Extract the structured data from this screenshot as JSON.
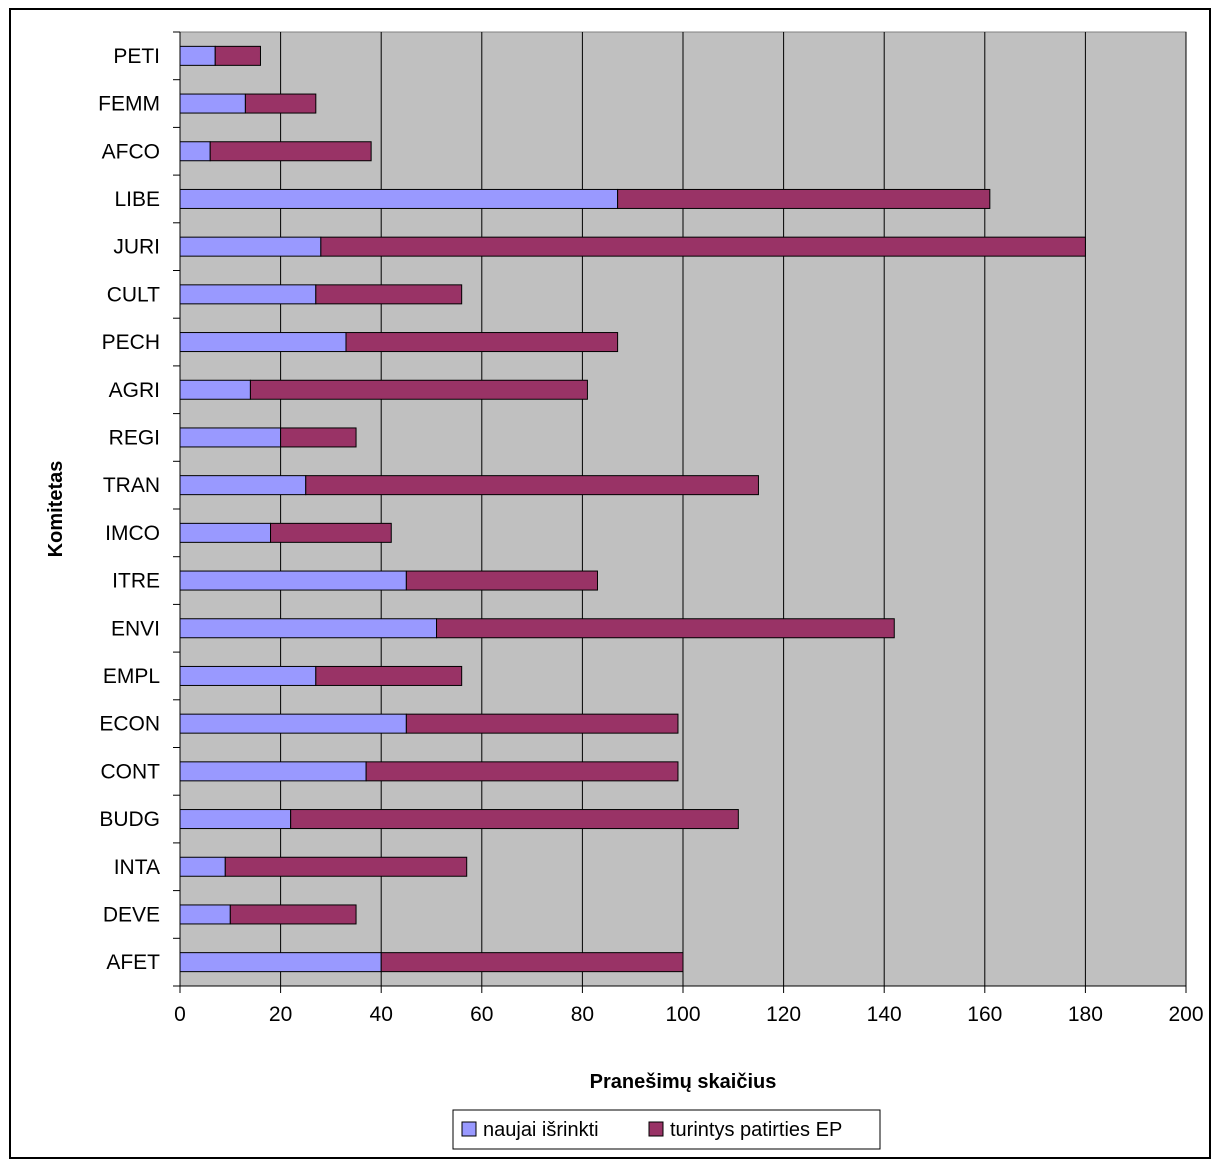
{
  "chart_data": {
    "type": "bar",
    "orientation": "horizontal",
    "stacked": true,
    "categories": [
      "AFET",
      "DEVE",
      "INTA",
      "BUDG",
      "CONT",
      "ECON",
      "EMPL",
      "ENVI",
      "ITRE",
      "IMCO",
      "TRAN",
      "REGI",
      "AGRI",
      "PECH",
      "CULT",
      "JURI",
      "LIBE",
      "AFCO",
      "FEMM",
      "PETI"
    ],
    "series": [
      {
        "name": "naujai išrinkti",
        "color": "#9999ff",
        "values": [
          40,
          10,
          9,
          22,
          37,
          45,
          27,
          51,
          45,
          18,
          25,
          20,
          14,
          33,
          27,
          28,
          87,
          6,
          13,
          7
        ]
      },
      {
        "name": "turintys patirties EP",
        "color": "#993366",
        "values": [
          60,
          25,
          48,
          89,
          62,
          54,
          29,
          91,
          38,
          24,
          90,
          15,
          67,
          54,
          29,
          152,
          74,
          32,
          14,
          9
        ]
      }
    ],
    "xlabel": "Pranešimų skaičius",
    "ylabel": "Komitetas",
    "xlim": [
      0,
      200
    ],
    "xticks": [
      0,
      20,
      40,
      60,
      80,
      100,
      120,
      140,
      160,
      180,
      200
    ],
    "plot_background": "#c0c0c0",
    "grid": true,
    "legend_position": "bottom"
  }
}
